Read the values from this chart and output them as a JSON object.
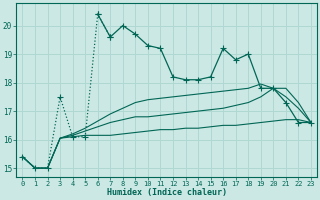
{
  "xlabel": "Humidex (Indice chaleur)",
  "background_color": "#cce8e4",
  "grid_color": "#b0d8d2",
  "line_color": "#006655",
  "xlim": [
    -0.5,
    23.5
  ],
  "ylim": [
    14.7,
    20.8
  ],
  "yticks": [
    15,
    16,
    17,
    18,
    19,
    20
  ],
  "xticks": [
    0,
    1,
    2,
    3,
    4,
    5,
    6,
    7,
    8,
    9,
    10,
    11,
    12,
    13,
    14,
    15,
    16,
    17,
    18,
    19,
    20,
    21,
    22,
    23
  ],
  "series1_x": [
    0,
    1,
    2,
    3,
    4,
    5,
    6,
    7,
    8,
    9,
    10,
    11,
    12,
    13,
    14,
    15,
    16,
    17,
    18,
    19,
    20,
    21,
    22,
    23
  ],
  "series1_y": [
    15.4,
    15.0,
    15.0,
    17.5,
    16.1,
    16.1,
    20.4,
    19.6,
    20.0,
    19.7,
    19.3,
    19.2,
    18.2,
    18.1,
    18.1,
    18.2,
    19.2,
    18.8,
    19.0,
    17.8,
    17.8,
    17.3,
    16.6,
    16.6
  ],
  "series1_dotted_x": [
    0,
    1,
    2,
    3,
    4,
    5,
    6,
    7
  ],
  "series1_dotted_y": [
    15.4,
    15.0,
    15.0,
    17.5,
    16.1,
    16.1,
    20.4,
    19.6
  ],
  "series2_x": [
    0,
    1,
    2,
    3,
    4,
    5,
    6,
    7,
    8,
    9,
    10,
    11,
    12,
    13,
    14,
    15,
    16,
    17,
    18,
    19,
    20,
    21,
    22,
    23
  ],
  "series2_y": [
    15.4,
    15.0,
    15.0,
    16.05,
    16.1,
    16.15,
    16.15,
    16.15,
    16.2,
    16.25,
    16.3,
    16.35,
    16.35,
    16.4,
    16.4,
    16.45,
    16.5,
    16.5,
    16.55,
    16.6,
    16.65,
    16.7,
    16.7,
    16.6
  ],
  "series3_x": [
    0,
    1,
    2,
    3,
    4,
    5,
    6,
    7,
    8,
    9,
    10,
    11,
    12,
    13,
    14,
    15,
    16,
    17,
    18,
    19,
    20,
    21,
    22,
    23
  ],
  "series3_y": [
    15.4,
    15.0,
    15.0,
    16.05,
    16.15,
    16.3,
    16.45,
    16.6,
    16.7,
    16.8,
    16.8,
    16.85,
    16.9,
    16.95,
    17.0,
    17.05,
    17.1,
    17.2,
    17.3,
    17.5,
    17.8,
    17.8,
    17.3,
    16.6
  ],
  "series4_x": [
    0,
    1,
    2,
    3,
    4,
    5,
    6,
    7,
    8,
    9,
    10,
    11,
    12,
    13,
    14,
    15,
    16,
    17,
    18,
    19,
    20,
    21,
    22,
    23
  ],
  "series4_y": [
    15.4,
    15.0,
    15.0,
    16.05,
    16.2,
    16.4,
    16.65,
    16.9,
    17.1,
    17.3,
    17.4,
    17.45,
    17.5,
    17.55,
    17.6,
    17.65,
    17.7,
    17.75,
    17.8,
    17.95,
    17.8,
    17.5,
    17.1,
    16.6
  ]
}
